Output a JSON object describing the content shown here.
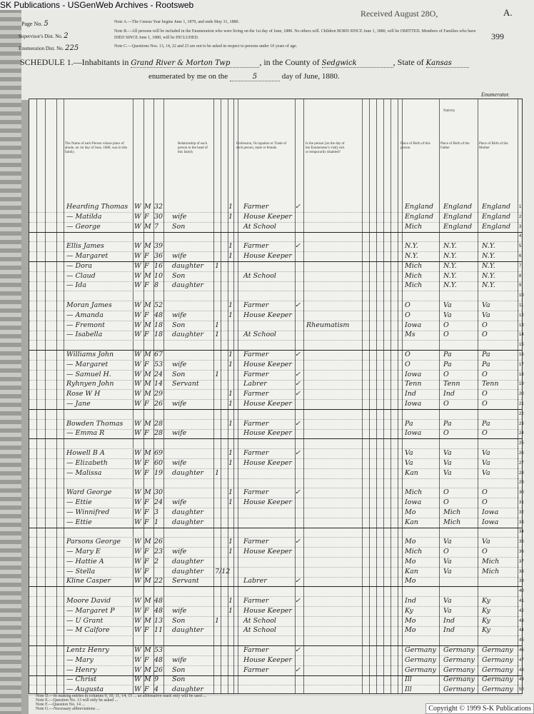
{
  "source_banner": "SK Publications - USGenWeb Archives - Rootsweb",
  "header": {
    "page_no_label": "Page No.",
    "page_no": "5",
    "supervisor_label": "Supervisor's Dist. No.",
    "supervisor": "2",
    "enumeration_label": "Enumeration Dist. No.",
    "enumeration": "225",
    "note_a": "Note A.—The Census Year begins June 1, 1879, and ends May 31, 1880.",
    "note_b": "Note B.—All persons will be included in the Enumeration who were living on the 1st day of June, 1880. No others will. Children BORN SINCE June 1, 1880, will be OMITTED. Members of Families who have DIED SINCE June 1, 1880, will be INCLUDED.",
    "note_c": "Note C.—Questions Nos. 13, 14, 22 and 23 are not to be asked in respect to persons under 10 years of age.",
    "received": "Received August 28O,",
    "letter": "A.",
    "sheet_number": "399",
    "schedule_label": "SCHEDULE 1.—Inhabitants in",
    "township": "Grand River & Morton Twp",
    "county_label": ", in the County of",
    "county": "Sedgwick",
    "state_label": ", State of",
    "state": "Kansas",
    "enumerated_label": "enumerated by me on the",
    "day": "5",
    "date_suffix": "day of June, 1880.",
    "enumerator_label": "Enumerator."
  },
  "column_heads": {
    "name": "The Name of each Person whose place of abode, on 1st day of June, 1880, was in this family.",
    "relation": "Relationship of each person to the head of this family",
    "occupation": "Profession, Occupation or Trade of each person, male or female.",
    "health": "Is the person [on the day of the Enumerator's visit] sick or temporarily disabled?",
    "nativity": "Nativity",
    "birth": "Place of Birth of this person",
    "father": "Place of Birth of the Father",
    "mother": "Place of Birth of the Mother"
  },
  "rows": [
    {
      "name": "Hearding Thomas",
      "color": "W",
      "sex": "M",
      "age": "32",
      "rel": "",
      "single": "",
      "married": "1",
      "occ": "Farmer",
      "health": "",
      "check": true,
      "birth": "England",
      "father": "England",
      "mother": "England"
    },
    {
      "name": "— Matilda",
      "color": "W",
      "sex": "F",
      "age": "30",
      "rel": "wife",
      "married": "1",
      "occ": "House Keeper",
      "birth": "England",
      "father": "England",
      "mother": "England"
    },
    {
      "name": "— George",
      "color": "W",
      "sex": "M",
      "age": "7",
      "rel": "Son",
      "occ": "At School",
      "birth": "Mich",
      "father": "England",
      "mother": "England",
      "sep": true
    },
    {},
    {
      "name": "Ellis James",
      "color": "W",
      "sex": "M",
      "age": "39",
      "married": "1",
      "occ": "Farmer",
      "check": true,
      "birth": "N.Y.",
      "father": "N.Y.",
      "mother": "N.Y."
    },
    {
      "name": "— Margaret",
      "color": "W",
      "sex": "F",
      "age": "36",
      "rel": "wife",
      "married": "1",
      "occ": "House Keeper",
      "birth": "N.Y.",
      "father": "N.Y.",
      "mother": "N.Y.",
      "sep": true
    },
    {
      "name": "— Dora",
      "color": "W",
      "sex": "F",
      "age": "16",
      "rel": "daughter",
      "single": "1",
      "birth": "Mich",
      "father": "N.Y.",
      "mother": "N.Y."
    },
    {
      "name": "— Claud",
      "color": "W",
      "sex": "M",
      "age": "10",
      "rel": "Son",
      "occ": "At School",
      "birth": "Mich",
      "father": "N.Y.",
      "mother": "N.Y."
    },
    {
      "name": "— Ida",
      "color": "W",
      "sex": "F",
      "age": "8",
      "rel": "daughter",
      "birth": "Mich",
      "father": "N.Y.",
      "mother": "N.Y."
    },
    {},
    {
      "name": "Moran James",
      "color": "W",
      "sex": "M",
      "age": "52",
      "married": "1",
      "occ": "Farmer",
      "check": true,
      "birth": "O",
      "father": "Va",
      "mother": "Va"
    },
    {
      "name": "— Amanda",
      "color": "W",
      "sex": "F",
      "age": "48",
      "rel": "wife",
      "married": "1",
      "occ": "House Keeper",
      "birth": "O",
      "father": "Va",
      "mother": "Va"
    },
    {
      "name": "— Fremont",
      "color": "W",
      "sex": "M",
      "age": "18",
      "rel": "Son",
      "single": "1",
      "health": "Rheumatism",
      "birth": "Iowa",
      "father": "O",
      "mother": "O"
    },
    {
      "name": "— Isabella",
      "color": "W",
      "sex": "F",
      "age": "18",
      "rel": "daughter",
      "single": "1",
      "occ": "At School",
      "birth": "Ms",
      "father": "O",
      "mother": "O"
    },
    {
      "sep": true
    },
    {
      "name": "Williams John",
      "color": "W",
      "sex": "M",
      "age": "67",
      "married": "1",
      "occ": "Farmer",
      "check": true,
      "birth": "O",
      "father": "Pa",
      "mother": "Pa"
    },
    {
      "name": "— Margaret",
      "color": "W",
      "sex": "F",
      "age": "53",
      "rel": "wife",
      "married": "1",
      "occ": "House Keeper",
      "birth": "O",
      "father": "Pa",
      "mother": "Pa"
    },
    {
      "name": "— Samuel H.",
      "color": "W",
      "sex": "M",
      "age": "24",
      "rel": "Son",
      "single": "1",
      "occ": "Farmer",
      "check": true,
      "birth": "Iowa",
      "father": "O",
      "mother": "O"
    },
    {
      "name": "Ryhnyen John",
      "color": "W",
      "sex": "M",
      "age": "14",
      "rel": "Servant",
      "occ": "Labrer",
      "check": true,
      "birth": "Tenn",
      "father": "Tenn",
      "mother": "Tenn"
    },
    {
      "name": "Rose W H",
      "color": "W",
      "sex": "M",
      "age": "29",
      "married": "1",
      "occ": "Farmer",
      "check": true,
      "birth": "Ind",
      "father": "Ind",
      "mother": "O"
    },
    {
      "name": "— Jane",
      "color": "W",
      "sex": "F",
      "age": "26",
      "rel": "wife",
      "married": "1",
      "occ": "House Keeper",
      "birth": "Iowa",
      "father": "O",
      "mother": "O",
      "sep": true
    },
    {},
    {
      "name": "Bowden Thomas",
      "color": "W",
      "sex": "M",
      "age": "28",
      "married": "1",
      "occ": "Farmer",
      "check": true,
      "birth": "Pa",
      "father": "Pa",
      "mother": "Pa"
    },
    {
      "name": "— Emma R",
      "color": "W",
      "sex": "F",
      "age": "28",
      "rel": "wife",
      "occ": "House Keeper",
      "birth": "Iowa",
      "father": "O",
      "mother": "O",
      "sep": true
    },
    {},
    {
      "name": "Howell B A",
      "color": "W",
      "sex": "M",
      "age": "69",
      "married": "1",
      "occ": "Farmer",
      "check": true,
      "birth": "Va",
      "father": "Va",
      "mother": "Va"
    },
    {
      "name": "— Elizabeth",
      "color": "W",
      "sex": "F",
      "age": "60",
      "rel": "wife",
      "married": "1",
      "occ": "House Keeper",
      "birth": "Va",
      "father": "Va",
      "mother": "Va"
    },
    {
      "name": "— Malissa",
      "color": "W",
      "sex": "F",
      "age": "19",
      "rel": "daughter",
      "single": "1",
      "birth": "Kan",
      "father": "Va",
      "mother": "Va"
    },
    {},
    {
      "name": "Ward George",
      "color": "W",
      "sex": "M",
      "age": "30",
      "married": "1",
      "occ": "Farmer",
      "check": true,
      "birth": "Mich",
      "father": "O",
      "mother": "O"
    },
    {
      "name": "— Ettie",
      "color": "W",
      "sex": "F",
      "age": "24",
      "rel": "wife",
      "married": "1",
      "occ": "House Keeper",
      "birth": "Iowa",
      "father": "O",
      "mother": "O"
    },
    {
      "name": "— Winnifred",
      "color": "W",
      "sex": "F",
      "age": "3",
      "rel": "daughter",
      "birth": "Mo",
      "father": "Mich",
      "mother": "Iowa"
    },
    {
      "name": "— Ettie",
      "color": "W",
      "sex": "F",
      "age": "1",
      "rel": "daughter",
      "birth": "Kan",
      "father": "Mich",
      "mother": "Iowa",
      "sep": true
    },
    {},
    {
      "name": "Parsons George",
      "color": "W",
      "sex": "M",
      "age": "26",
      "married": "1",
      "occ": "Farmer",
      "check": true,
      "birth": "Mo",
      "father": "Va",
      "mother": "Va"
    },
    {
      "name": "— Mary E",
      "color": "W",
      "sex": "F",
      "age": "23",
      "rel": "wife",
      "married": "1",
      "occ": "House Keeper",
      "birth": "Mich",
      "father": "O",
      "mother": "O"
    },
    {
      "name": "— Hattie A",
      "color": "W",
      "sex": "F",
      "age": "2",
      "rel": "daughter",
      "birth": "Mo",
      "father": "Va",
      "mother": "Mich"
    },
    {
      "name": "— Stella",
      "color": "W",
      "sex": "F",
      "age": "",
      "rel": "daughter",
      "single": "7/12",
      "birth": "Kan",
      "father": "Va",
      "mother": "Mich"
    },
    {
      "name": "Kline Casper",
      "color": "W",
      "sex": "M",
      "age": "22",
      "rel": "Servant",
      "occ": "Labrer",
      "check": true,
      "birth": "Mo",
      "sep": true
    },
    {},
    {
      "name": "Moore David",
      "color": "W",
      "sex": "M",
      "age": "48",
      "married": "1",
      "occ": "Farmer",
      "check": true,
      "birth": "Ind",
      "father": "Va",
      "mother": "Ky"
    },
    {
      "name": "— Margaret P",
      "color": "W",
      "sex": "F",
      "age": "48",
      "rel": "wife",
      "married": "1",
      "occ": "House Keeper",
      "birth": "Ky",
      "father": "Va",
      "mother": "Ky"
    },
    {
      "name": "— U Grant",
      "color": "W",
      "sex": "M",
      "age": "13",
      "rel": "Son",
      "single": "1",
      "occ": "At School",
      "birth": "Mo",
      "father": "Ind",
      "mother": "Ky"
    },
    {
      "name": "— M Calfore",
      "color": "W",
      "sex": "F",
      "age": "11",
      "rel": "daughter",
      "occ": "At School",
      "birth": "Mo",
      "father": "Ind",
      "mother": "Ky"
    },
    {
      "sep": true
    },
    {
      "name": "Lentz Henry",
      "color": "W",
      "sex": "M",
      "age": "53",
      "occ": "Farmer",
      "check": true,
      "birth": "Germany",
      "father": "Germany",
      "mother": "Germany"
    },
    {
      "name": "— Mary",
      "color": "W",
      "sex": "F",
      "age": "48",
      "rel": "wife",
      "occ": "House Keeper",
      "birth": "Germany",
      "father": "Germany",
      "mother": "Germany"
    },
    {
      "name": "— Henry",
      "color": "W",
      "sex": "M",
      "age": "26",
      "rel": "Son",
      "occ": "Farmer",
      "check": true,
      "birth": "Germany",
      "father": "Germany",
      "mother": "Germany",
      "sep": true
    },
    {
      "name": "— Christ",
      "color": "W",
      "sex": "M",
      "age": "9",
      "rel": "Son",
      "birth": "Ill",
      "father": "Germany",
      "mother": "Germany"
    },
    {
      "name": "— Augusta",
      "color": "W",
      "sex": "F",
      "age": "4",
      "rel": "daughter",
      "birth": "Ill",
      "father": "Germany",
      "mother": "Germany"
    }
  ],
  "footnotes": [
    "Note D.—In making entries in columns 9, 10, 11, 14, 15 ... an affirmative mark only will be used ...",
    "Note E.—Question No. 13 will only be asked ...",
    "Note F.—Question No. 14 ...",
    "Note G.—Necessary abbreviations ..."
  ],
  "copyright": "Copyright © 1999 S-K Publications"
}
